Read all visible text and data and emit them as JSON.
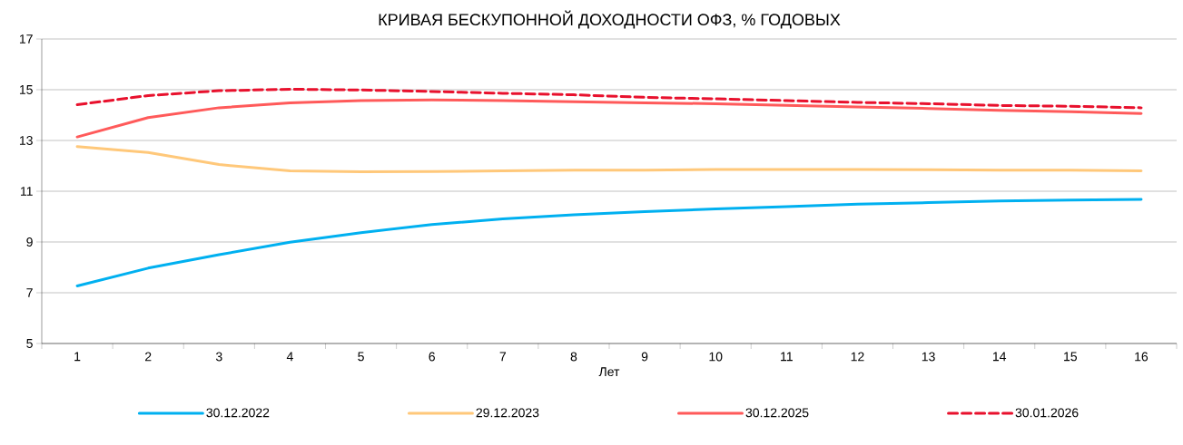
{
  "chart_data": {
    "type": "line",
    "title": "КРИВАЯ БЕСКУПОННОЙ ДОХОДНОСТИ ОФЗ, % ГОДОВЫХ",
    "xlabel": "Лет",
    "categories": [
      "1",
      "2",
      "3",
      "4",
      "5",
      "6",
      "7",
      "8",
      "9",
      "10",
      "11",
      "12",
      "13",
      "14",
      "15",
      "16"
    ],
    "series": [
      {
        "name": "30.12.2022",
        "color": "#00b0f0",
        "line_style": "solid",
        "values": [
          7.27,
          7.97,
          8.5,
          8.99,
          9.37,
          9.69,
          9.91,
          10.07,
          10.2,
          10.3,
          10.39,
          10.49,
          10.55,
          10.62,
          10.65,
          10.68
        ]
      },
      {
        "name": "29.12.2023",
        "color": "#ffc87a",
        "line_style": "solid",
        "values": [
          12.76,
          12.53,
          12.05,
          11.8,
          11.77,
          11.78,
          11.8,
          11.83,
          11.83,
          11.86,
          11.86,
          11.86,
          11.85,
          11.83,
          11.83,
          11.8
        ]
      },
      {
        "name": "30.12.2025",
        "color": "#ff5a5a",
        "line_style": "solid",
        "values": [
          13.14,
          13.9,
          14.29,
          14.48,
          14.57,
          14.6,
          14.57,
          14.53,
          14.48,
          14.45,
          14.38,
          14.32,
          14.26,
          14.19,
          14.13,
          14.06
        ]
      },
      {
        "name": "30.01.2026",
        "color": "#e8112d",
        "line_style": "dashed",
        "values": [
          14.41,
          14.77,
          14.96,
          15.02,
          14.99,
          14.93,
          14.86,
          14.8,
          14.7,
          14.64,
          14.57,
          14.5,
          14.45,
          14.38,
          14.35,
          14.29
        ]
      }
    ],
    "ylim": [
      5,
      17
    ],
    "yticks": [
      5,
      7,
      9,
      11,
      13,
      15,
      17
    ],
    "grid": "y",
    "legend": "bottom",
    "marker": "none"
  }
}
